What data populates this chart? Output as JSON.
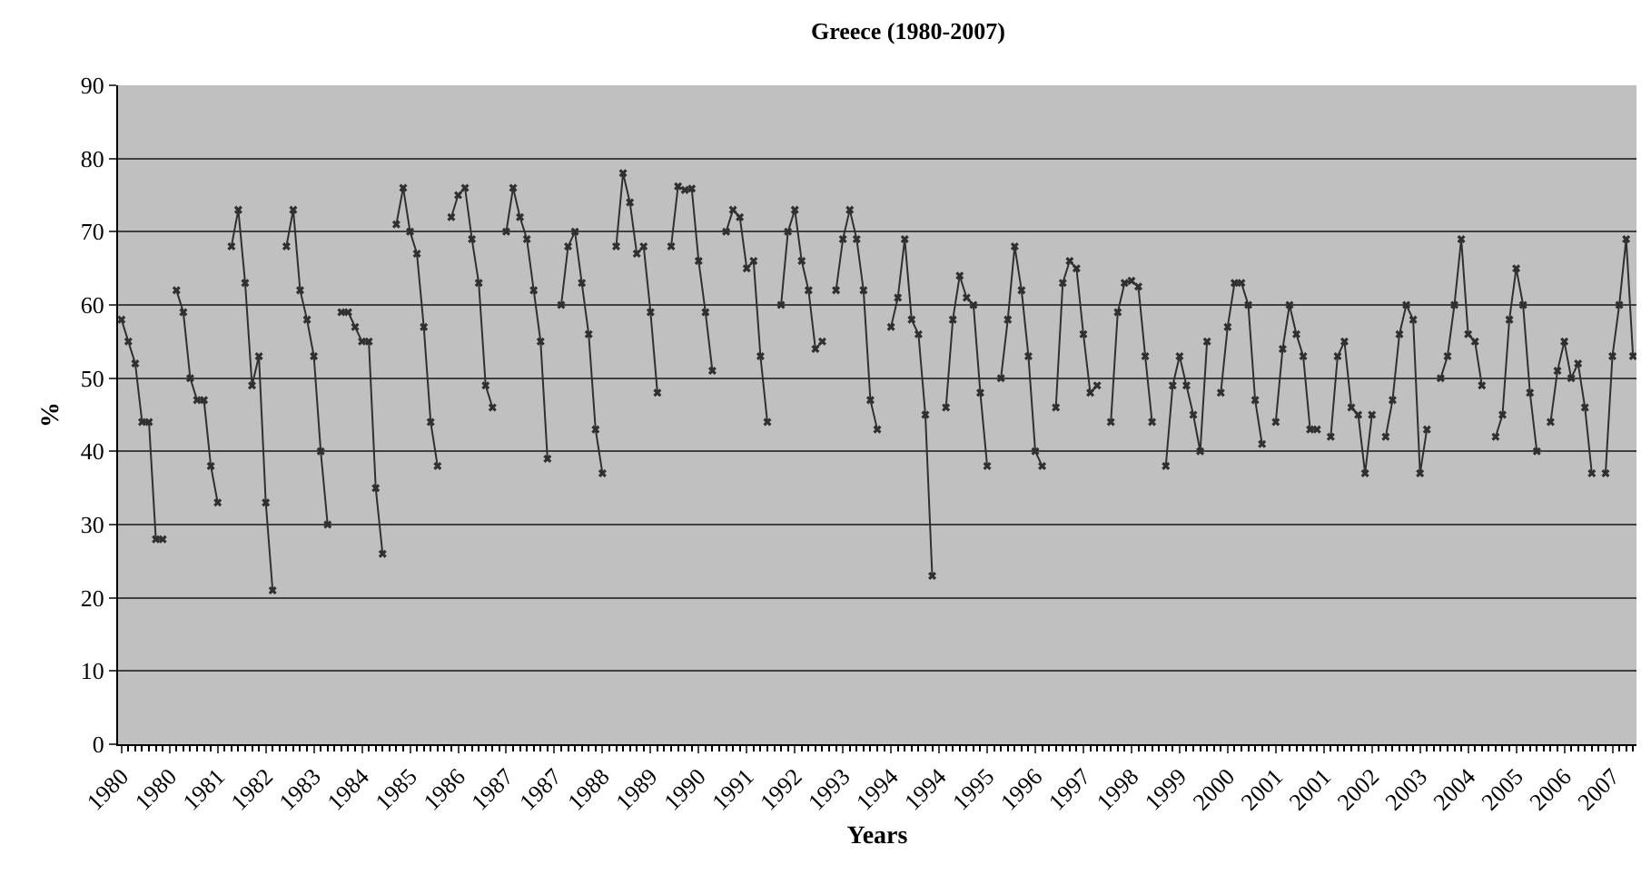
{
  "chart_data": {
    "type": "line",
    "title": "Greece (1980-2007)",
    "xlabel": "Years",
    "ylabel": "%",
    "categories": [
      "1980",
      null,
      null,
      null,
      null,
      null,
      null,
      "1980",
      null,
      null,
      null,
      null,
      null,
      null,
      "1981",
      null,
      null,
      null,
      null,
      null,
      null,
      "1982",
      null,
      null,
      null,
      null,
      null,
      null,
      "1983",
      null,
      null,
      null,
      null,
      null,
      null,
      "1984",
      null,
      null,
      null,
      null,
      null,
      null,
      "1985",
      null,
      null,
      null,
      null,
      null,
      null,
      "1986",
      null,
      null,
      null,
      null,
      null,
      null,
      "1987",
      null,
      null,
      null,
      null,
      null,
      null,
      "1987",
      null,
      null,
      null,
      null,
      null,
      null,
      "1988",
      null,
      null,
      null,
      null,
      null,
      null,
      "1989",
      null,
      null,
      null,
      null,
      null,
      null,
      "1990",
      null,
      null,
      null,
      null,
      null,
      null,
      "1991",
      null,
      null,
      null,
      null,
      null,
      null,
      "1992",
      null,
      null,
      null,
      null,
      null,
      null,
      "1993",
      null,
      null,
      null,
      null,
      null,
      null,
      "1994",
      null,
      null,
      null,
      null,
      null,
      null,
      "1994",
      null,
      null,
      null,
      null,
      null,
      null,
      "1995",
      null,
      null,
      null,
      null,
      null,
      null,
      "1996",
      null,
      null,
      null,
      null,
      null,
      null,
      "1997",
      null,
      null,
      null,
      null,
      null,
      null,
      "1998",
      null,
      null,
      null,
      null,
      null,
      null,
      "1999",
      null,
      null,
      null,
      null,
      null,
      null,
      "2000",
      null,
      null,
      null,
      null,
      null,
      null,
      "2001",
      null,
      null,
      null,
      null,
      null,
      null,
      "2001",
      null,
      null,
      null,
      null,
      null,
      null,
      "2002",
      null,
      null,
      null,
      null,
      null,
      null,
      "2003",
      null,
      null,
      null,
      null,
      null,
      null,
      "2004",
      null,
      null,
      null,
      null,
      null,
      null,
      "2005",
      null,
      null,
      null,
      null,
      null,
      null,
      "2006",
      null,
      null,
      null,
      null,
      null,
      null,
      "2007",
      null,
      null,
      null
    ],
    "series": [
      {
        "color": "#303030",
        "values": [
          58,
          55,
          52,
          44,
          44,
          28,
          28,
          null,
          62,
          59,
          50,
          47,
          47,
          38,
          33,
          null,
          68,
          73,
          63,
          49,
          53,
          33,
          21,
          null,
          68,
          73,
          62,
          58,
          53,
          40,
          30,
          null,
          59,
          59,
          57,
          55,
          55,
          35,
          26,
          null,
          71,
          76,
          70,
          67,
          57,
          44,
          38,
          null,
          72,
          75,
          76,
          69,
          63,
          49,
          46,
          null,
          70,
          76,
          72,
          69,
          62,
          55,
          39,
          null,
          60,
          68,
          70,
          63,
          56,
          43,
          37,
          null,
          68,
          78,
          74,
          67,
          68,
          59,
          48,
          null,
          68,
          76.2,
          75.7,
          75.9,
          66,
          59,
          51,
          null,
          70,
          73,
          72,
          65,
          66,
          53,
          44,
          null,
          60,
          70,
          73,
          66,
          62,
          54,
          55,
          null,
          62,
          69,
          73,
          69,
          62,
          47,
          43,
          null,
          57,
          61,
          69,
          58,
          56,
          45,
          23,
          null,
          46,
          58,
          64,
          61,
          60,
          48,
          38,
          null,
          50,
          58,
          68,
          62,
          53,
          40,
          38,
          null,
          46,
          63,
          66,
          65,
          56,
          48,
          49,
          null,
          44,
          59,
          63,
          63.3,
          62.5,
          53,
          44,
          null,
          38,
          49,
          53,
          49,
          45,
          40,
          55,
          null,
          48,
          57,
          63,
          63,
          60,
          47,
          41,
          null,
          44,
          54,
          60,
          56,
          53,
          43,
          43,
          null,
          42,
          53,
          55,
          46,
          45,
          37,
          45,
          null,
          42,
          47,
          56,
          60,
          58,
          37,
          43,
          null,
          50,
          53,
          60,
          69,
          56,
          55,
          49,
          null,
          42,
          45,
          58,
          65,
          60,
          48,
          40,
          null,
          44,
          51,
          55,
          50,
          52,
          46,
          37,
          null,
          37,
          53,
          60,
          69,
          53
        ]
      }
    ],
    "ylim": [
      0,
      90
    ],
    "yticks": [
      0,
      10,
      20,
      30,
      40,
      50,
      60,
      70,
      80,
      90
    ],
    "grid": "y",
    "marker": "cross",
    "line_style": "solid"
  }
}
